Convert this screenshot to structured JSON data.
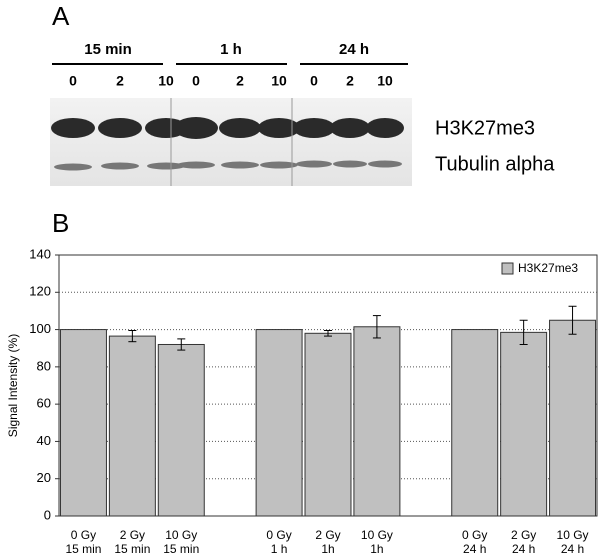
{
  "panel_a": {
    "label": "A",
    "time_labels": [
      "15 min",
      "1 h",
      "24 h"
    ],
    "dose_labels": [
      "0",
      "2",
      "10",
      "0",
      "2",
      "10",
      "0",
      "2",
      "10"
    ],
    "band_labels": [
      "H3K27me3",
      "Tubulin alpha"
    ]
  },
  "chart_data": {
    "type": "bar",
    "panel_label": "B",
    "y_label": "Signal Intensity (%)",
    "categories": [
      "0 Gy\n15 min",
      "2 Gy\n15 min",
      "10 Gy\n15 min",
      null,
      "0 Gy\n1 h",
      "2 Gy\n1h",
      "10 Gy\n1h",
      null,
      "0 Gy\n24 h",
      "2 Gy\n24 h",
      "10 Gy\n24 h"
    ],
    "series": [
      {
        "name": "H3K27me3",
        "color": "#c0c0c0",
        "values": [
          100,
          96.5,
          92,
          null,
          100,
          98,
          101.5,
          null,
          100,
          98.5,
          105
        ],
        "errors": [
          null,
          3,
          3,
          null,
          null,
          1.5,
          6,
          null,
          null,
          6.5,
          7.5
        ]
      }
    ],
    "ylim": [
      0,
      140
    ],
    "yticks": [
      0,
      20,
      40,
      60,
      80,
      100,
      120,
      140
    ],
    "grid": true,
    "legend": "top-right"
  }
}
